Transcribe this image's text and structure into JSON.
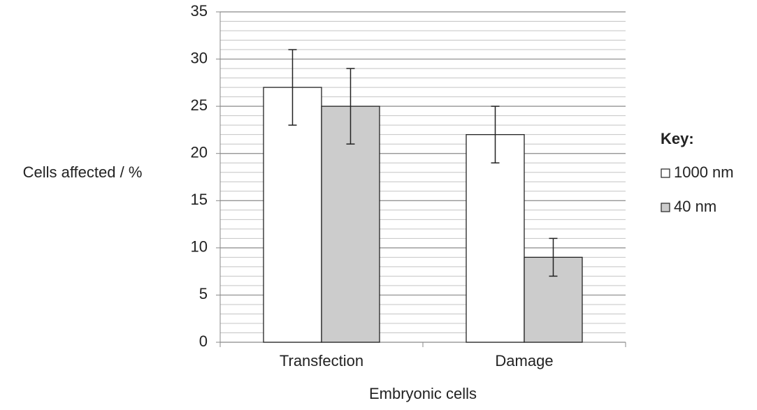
{
  "chart_data": {
    "type": "bar",
    "y_label": "Cells affected / %",
    "x_label": "Embryonic cells",
    "legend_title": "Key:",
    "categories": [
      "Transfection",
      "Damage"
    ],
    "series": [
      {
        "name": "1000 nm",
        "color": "#ffffff",
        "values": [
          27,
          22
        ],
        "errors": [
          4,
          3
        ]
      },
      {
        "name": "40 nm",
        "color": "#cccccc",
        "values": [
          25,
          9
        ],
        "errors": [
          4,
          2
        ]
      }
    ],
    "ylim": [
      0,
      35
    ],
    "yticks": [
      0,
      5,
      10,
      15,
      20,
      25,
      30,
      35
    ],
    "minor_yticks": [
      1,
      2,
      3,
      4,
      6,
      7,
      8,
      9,
      11,
      12,
      13,
      14,
      16,
      17,
      18,
      19,
      21,
      22,
      23,
      24,
      26,
      27,
      28,
      29,
      31,
      32,
      33,
      34
    ],
    "grid": true,
    "legend": "right"
  }
}
